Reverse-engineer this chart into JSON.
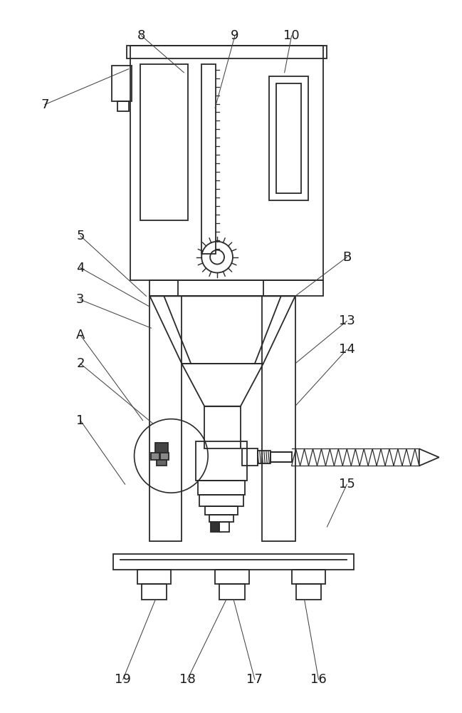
{
  "bg_color": "#ffffff",
  "line_color": "#2a2a2a",
  "lw": 1.3,
  "fig_width": 6.49,
  "fig_height": 10.0
}
